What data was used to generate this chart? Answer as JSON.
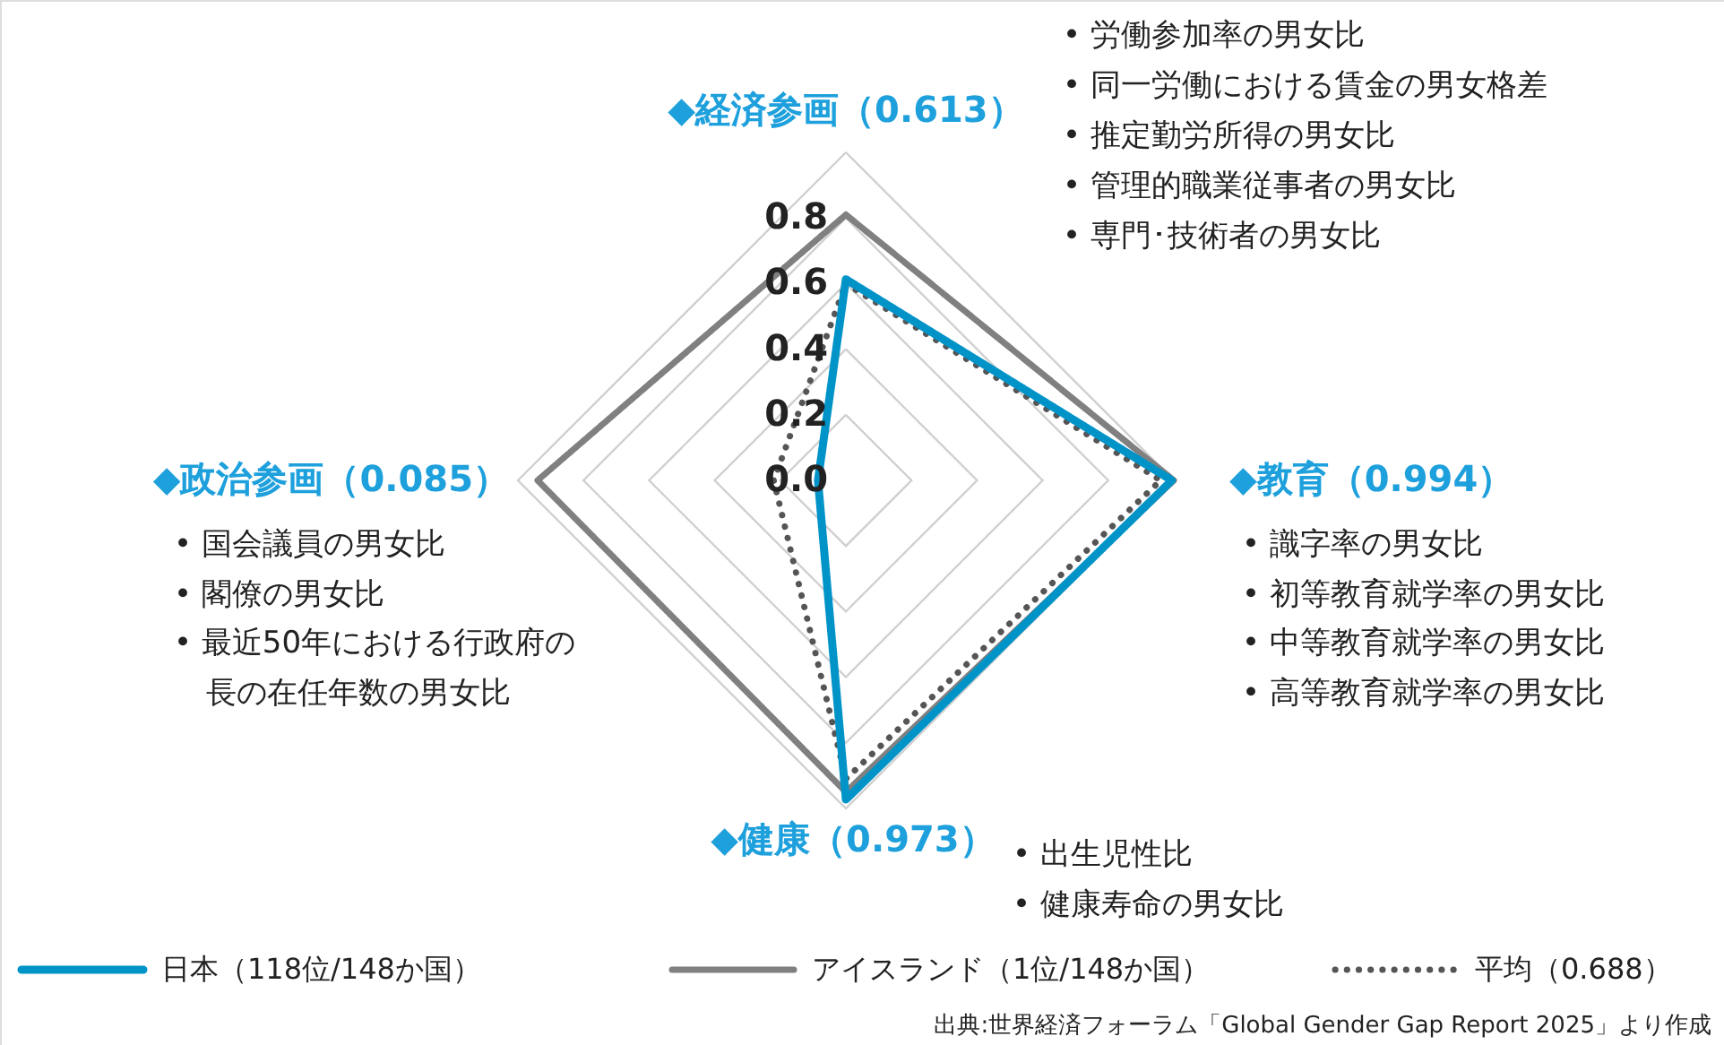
{
  "chart_data": {
    "type": "radar",
    "categories": [
      "◆経済参画（0.613）",
      "◆教育（0.994）",
      "◆健康（0.973）",
      "◆政治参画（0.085）"
    ],
    "series": [
      {
        "name": "日本（118位/148か国）",
        "color": "#0093c8",
        "line_style": "solid",
        "values": [
          0.613,
          0.994,
          0.973,
          0.085
        ]
      },
      {
        "name": "アイスランド（1位/148か国）",
        "color": "#808080",
        "line_style": "solid",
        "values": [
          0.81,
          1.0,
          0.95,
          0.94
        ]
      },
      {
        "name": "平均（0.688）",
        "color": "#555555",
        "line_style": "dotted",
        "values": [
          0.6,
          0.96,
          0.91,
          0.22
        ]
      }
    ],
    "ylim": [
      0,
      1.0
    ],
    "yticks": [
      {
        "value": 0,
        "label": "0.0"
      },
      {
        "value": 0.2,
        "label": "0.2"
      },
      {
        "value": 0.4,
        "label": "0.4"
      },
      {
        "value": 0.6,
        "label": "0.6"
      },
      {
        "value": 0.8,
        "label": "0.8"
      }
    ],
    "grid": true,
    "legend": "bottom",
    "marker": "none",
    "annotations": [
      "• 労働参加率の男女比",
      "• 同一労働における賃金の男女格差",
      "• 推定勤労所得の男女比",
      "• 管理的職業従事者の男女比",
      "• 専門･技術者の男女比",
      "• 識字率の男女比",
      "• 初等教育就学率の男女比",
      "• 中等教育就学率の男女比",
      "• 高等教育就学率の男女比",
      "• 出生児性比",
      "• 健康寿命の男女比",
      "• 国会議員の男女比",
      "• 閣僚の男女比",
      "• 最近50年における行政府の長の在任年数の男女比",
      "出典:世界経済フォーラム「Global Gender Gap Report 2025」より作成"
    ]
  }
}
